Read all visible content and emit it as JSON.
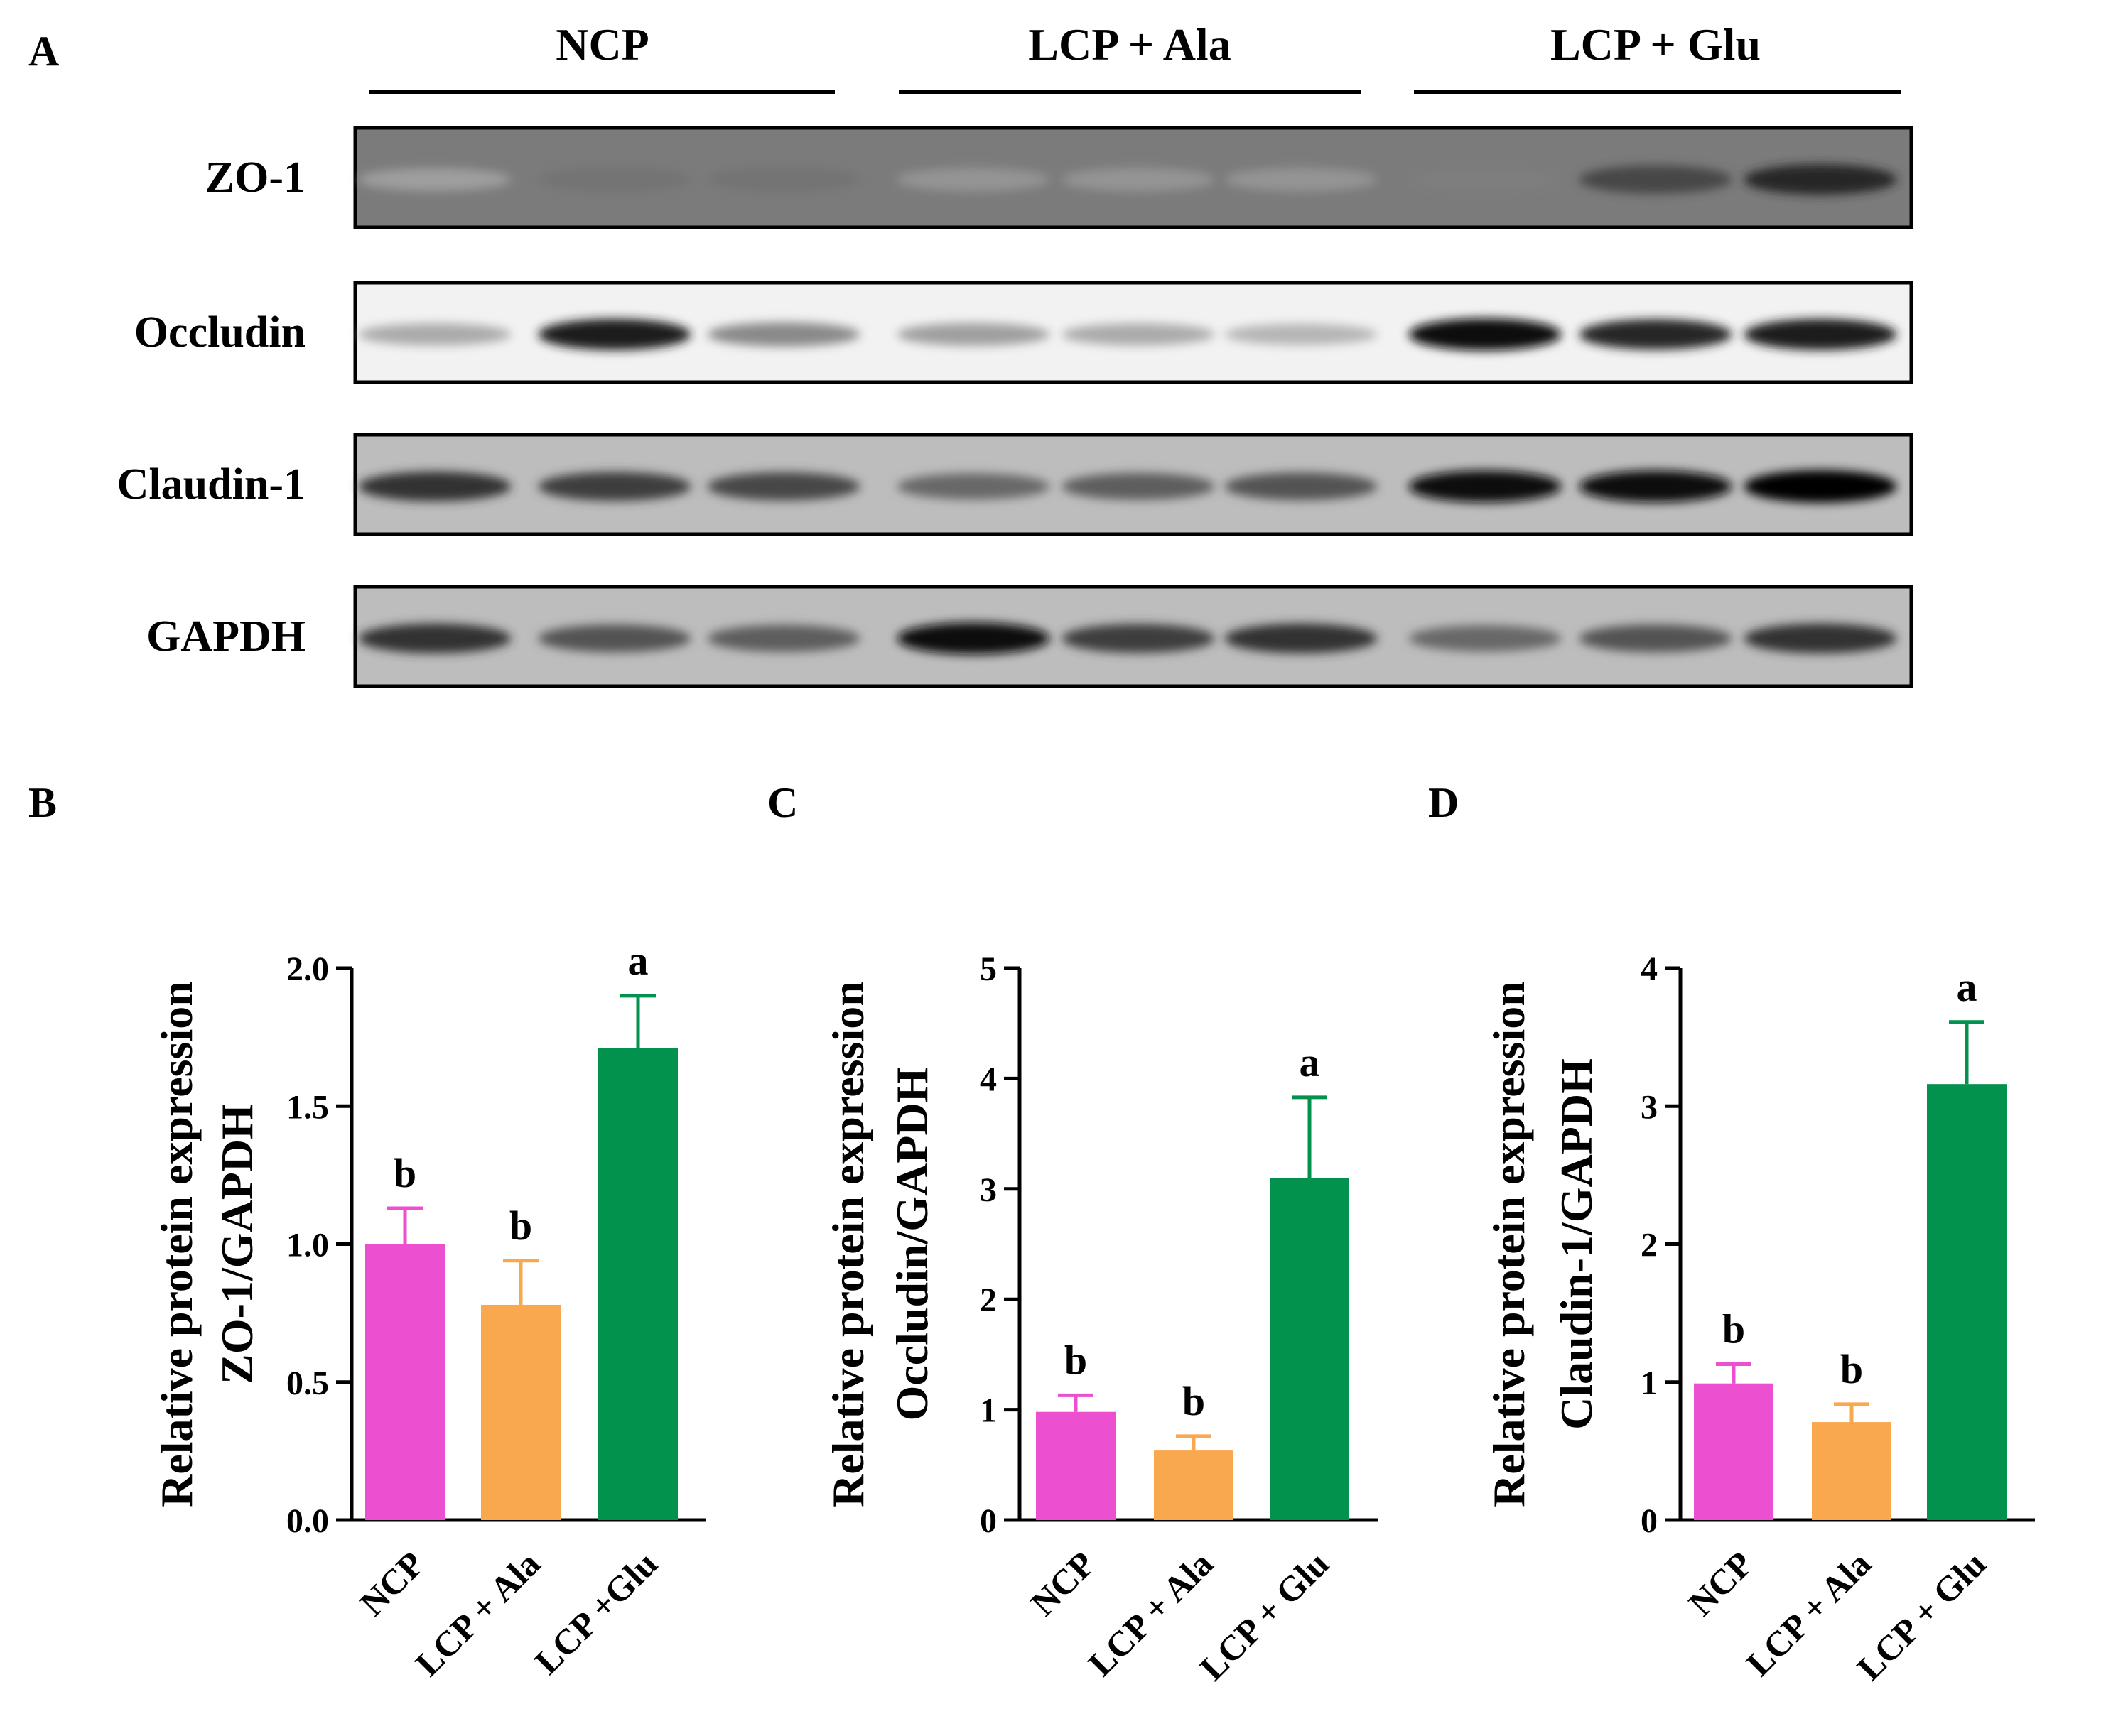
{
  "panel_labels": {
    "a": "A",
    "b": "B",
    "c": "C",
    "d": "D"
  },
  "blot": {
    "groups": [
      "NCP",
      "LCP + Ala",
      "LCP + Glu"
    ],
    "rows": [
      {
        "label": "ZO-1",
        "intensity": [
          0.3,
          0.5,
          0.5,
          0.35,
          0.35,
          0.35,
          0.45,
          0.7,
          0.85
        ]
      },
      {
        "label": "Occludin",
        "intensity": [
          0.25,
          0.9,
          0.4,
          0.3,
          0.25,
          0.2,
          0.98,
          0.85,
          0.9
        ]
      },
      {
        "label": "Claudin-1",
        "intensity": [
          0.8,
          0.75,
          0.7,
          0.55,
          0.6,
          0.65,
          0.95,
          0.95,
          1.0
        ]
      },
      {
        "label": "GAPDH",
        "intensity": [
          0.8,
          0.65,
          0.6,
          0.95,
          0.75,
          0.8,
          0.55,
          0.65,
          0.8
        ]
      }
    ]
  },
  "colors": {
    "NCP": "#EC4FCF",
    "LCP + Ala": "#F9A84D",
    "LCP + Glu": "#03914E"
  },
  "chart_data": [
    {
      "type": "bar",
      "panel": "B",
      "categories": [
        "NCP",
        "LCP + Ala",
        "LCP +Glu"
      ],
      "values": [
        1.0,
        0.78,
        1.71
      ],
      "errors": [
        0.13,
        0.16,
        0.19
      ],
      "letters": [
        "b",
        "b",
        "a"
      ],
      "ylabel": [
        "Relative protein expression",
        "ZO-1/GAPDH"
      ],
      "ylim": [
        0,
        2.0
      ],
      "yticks": [
        "0.0",
        "0.5",
        "1.0",
        "1.5",
        "2.0"
      ]
    },
    {
      "type": "bar",
      "panel": "C",
      "categories": [
        "NCP",
        "LCP + Ala",
        "LCP + Glu"
      ],
      "values": [
        0.98,
        0.63,
        3.1
      ],
      "errors": [
        0.15,
        0.13,
        0.73
      ],
      "letters": [
        "b",
        "b",
        "a"
      ],
      "ylabel": [
        "Relative protein expression",
        "Occludin/GAPDH"
      ],
      "ylim": [
        0,
        5
      ],
      "yticks": [
        "0",
        "1",
        "2",
        "3",
        "4",
        "5"
      ]
    },
    {
      "type": "bar",
      "panel": "D",
      "categories": [
        "NCP",
        "LCP + Ala",
        "LCP + Glu"
      ],
      "values": [
        0.99,
        0.71,
        3.16
      ],
      "errors": [
        0.14,
        0.13,
        0.45
      ],
      "letters": [
        "b",
        "b",
        "a"
      ],
      "ylabel": [
        "Relative protein expression",
        "Claudin-1/GAPDH"
      ],
      "ylim": [
        0,
        4
      ],
      "yticks": [
        "0",
        "1",
        "2",
        "3",
        "4"
      ]
    }
  ]
}
